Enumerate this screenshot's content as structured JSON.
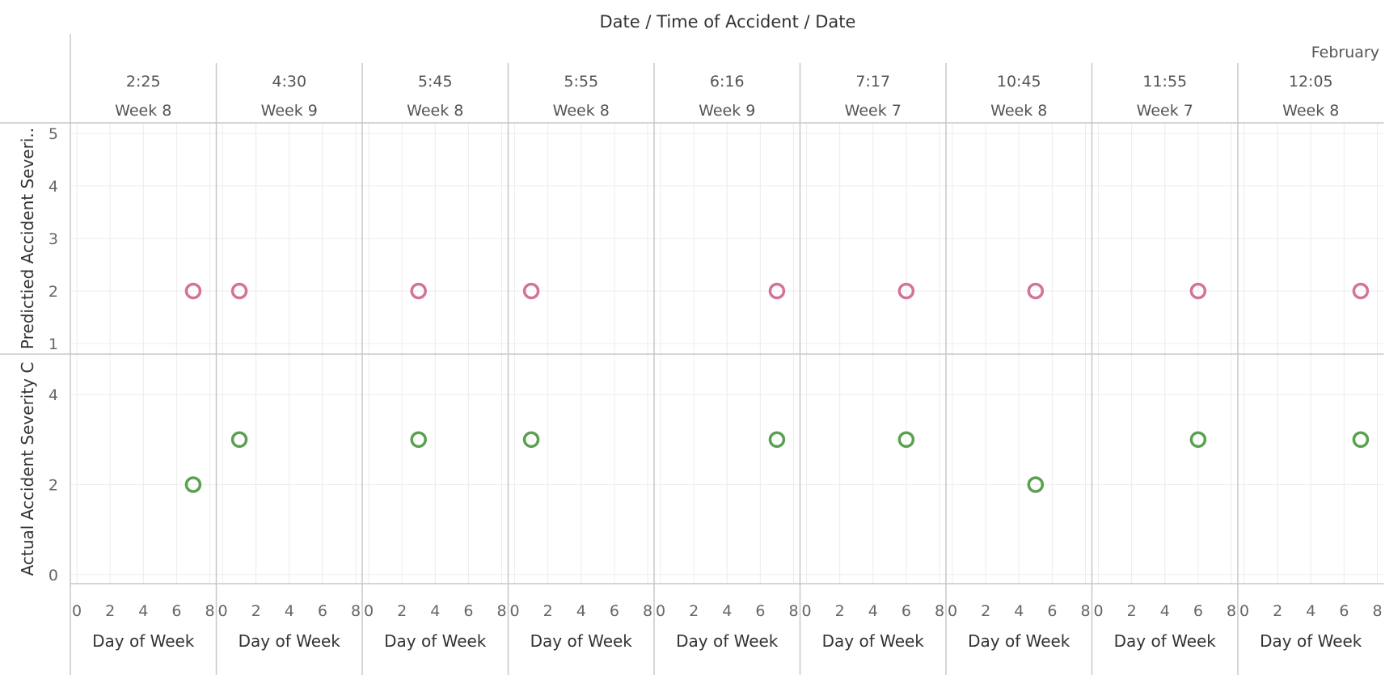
{
  "chart_data": {
    "type": "scatter",
    "title": "Date / Time of Accident / Date",
    "header_group": "February",
    "x_axis_label": "Day of Week",
    "x_ticks": [
      0,
      2,
      4,
      6,
      8
    ],
    "xlim": [
      0,
      8
    ],
    "panels": [
      {
        "time": "2:25",
        "week": "Week 8"
      },
      {
        "time": "4:30",
        "week": "Week 9"
      },
      {
        "time": "5:45",
        "week": "Week 8"
      },
      {
        "time": "5:55",
        "week": "Week 8"
      },
      {
        "time": "6:16",
        "week": "Week 9"
      },
      {
        "time": "7:17",
        "week": "Week 7"
      },
      {
        "time": "10:45",
        "week": "Week 8"
      },
      {
        "time": "11:55",
        "week": "Week 7"
      },
      {
        "time": "12:05",
        "week": "Week 8"
      }
    ],
    "rows": [
      {
        "label": "Predictied Accident Severi..",
        "ylim": [
          0.8,
          5.2
        ],
        "y_ticks": [
          1,
          2,
          3,
          4,
          5
        ],
        "color": "#d4729a",
        "points": [
          {
            "panel": 0,
            "x": 7,
            "y": 2
          },
          {
            "panel": 1,
            "x": 1,
            "y": 2
          },
          {
            "panel": 2,
            "x": 3,
            "y": 2
          },
          {
            "panel": 3,
            "x": 1,
            "y": 2
          },
          {
            "panel": 4,
            "x": 7,
            "y": 2
          },
          {
            "panel": 5,
            "x": 6,
            "y": 2
          },
          {
            "panel": 6,
            "x": 5,
            "y": 2
          },
          {
            "panel": 7,
            "x": 6,
            "y": 2
          },
          {
            "panel": 8,
            "x": 7,
            "y": 2
          }
        ]
      },
      {
        "label": "Actual Accident Severity C",
        "ylim": [
          -0.2,
          4.9
        ],
        "y_ticks": [
          0,
          2,
          4
        ],
        "color": "#59a14f",
        "points": [
          {
            "panel": 0,
            "x": 7,
            "y": 2
          },
          {
            "panel": 1,
            "x": 1,
            "y": 3
          },
          {
            "panel": 2,
            "x": 3,
            "y": 3
          },
          {
            "panel": 3,
            "x": 1,
            "y": 3
          },
          {
            "panel": 4,
            "x": 7,
            "y": 3
          },
          {
            "panel": 5,
            "x": 6,
            "y": 3
          },
          {
            "panel": 6,
            "x": 5,
            "y": 2
          },
          {
            "panel": 7,
            "x": 6,
            "y": 3
          },
          {
            "panel": 8,
            "x": 7,
            "y": 3
          }
        ]
      }
    ],
    "grid": true,
    "marker": "hollow-circle"
  }
}
